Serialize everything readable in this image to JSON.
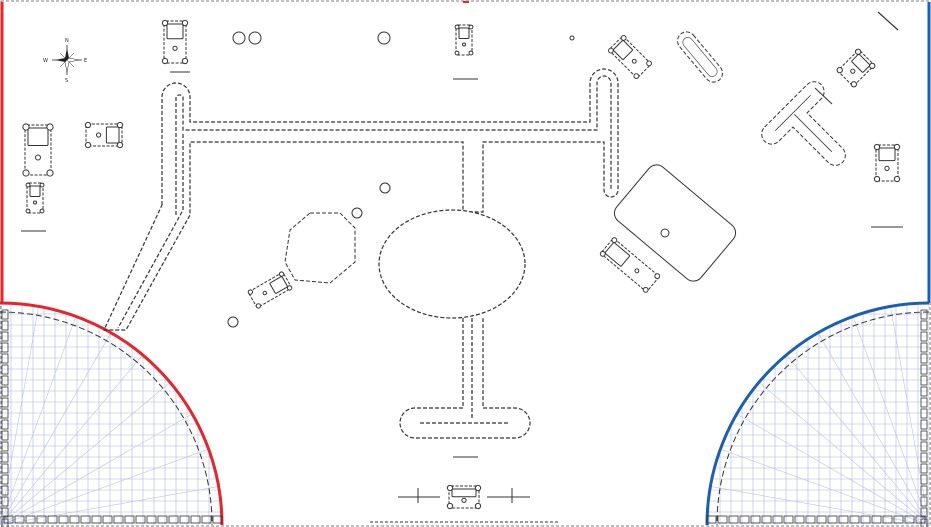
{
  "map": {
    "background_color": "#ffffff",
    "line_color": "#333333",
    "grid_color": "#aab8e0",
    "red_team_color": "#e8232a",
    "blue_team_color": "#1a5fb4",
    "red_base": {
      "corner": "bottom-left",
      "side_edge": "left"
    },
    "blue_base": {
      "corner": "bottom-right",
      "side_edge": "right"
    }
  },
  "compass": {
    "icon": "compass-rose-icon",
    "north": "N",
    "south": "S",
    "east": "E",
    "west": "W"
  }
}
